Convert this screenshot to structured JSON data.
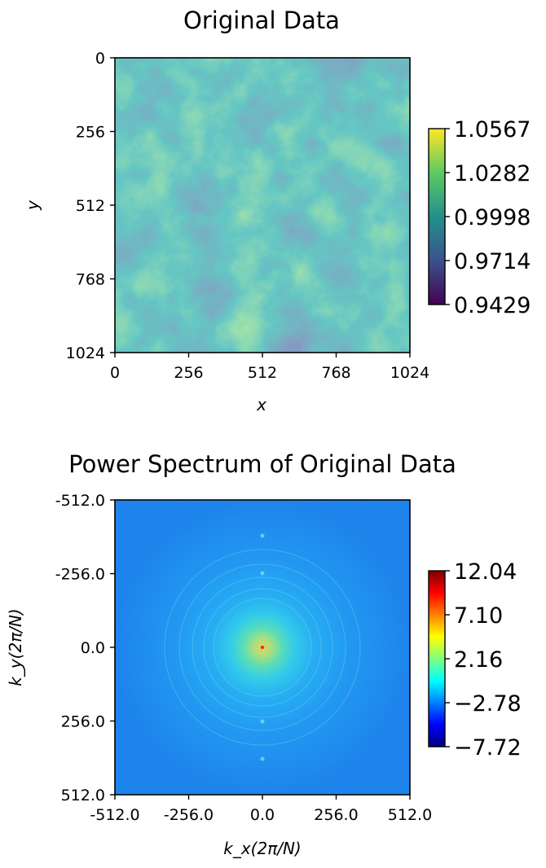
{
  "chart_data": [
    {
      "type": "heatmap",
      "title": "Original Data",
      "xlabel": "x",
      "ylabel": "y",
      "x_ticks": [
        "0",
        "256",
        "512",
        "768",
        "1024"
      ],
      "y_ticks": [
        "0",
        "256",
        "512",
        "768",
        "1024"
      ],
      "xlim": [
        0,
        1024
      ],
      "ylim": [
        1024,
        0
      ],
      "colormap": "viridis",
      "colorbar": {
        "range": [
          0.9429,
          1.0567
        ],
        "ticks": [
          "0.9429",
          "0.9714",
          "0.9998",
          "1.0282",
          "1.0567"
        ]
      }
    },
    {
      "type": "heatmap",
      "title": "Power Spectrum of Original Data",
      "xlabel": "k_x(2π/N)",
      "ylabel": "k_y(2π/N)",
      "x_ticks": [
        "-512.0",
        "-256.0",
        "0.0",
        "256.0",
        "512.0"
      ],
      "y_ticks": [
        "-512.0",
        "-256.0",
        "0.0",
        "256.0",
        "512.0"
      ],
      "xlim": [
        -512,
        512
      ],
      "ylim": [
        512,
        -512
      ],
      "colormap": "jet",
      "colorbar": {
        "range": [
          -7.72,
          12.04
        ],
        "ticks": [
          "−7.72",
          "−2.78",
          "2.16",
          "7.10",
          "12.04"
        ]
      }
    }
  ]
}
